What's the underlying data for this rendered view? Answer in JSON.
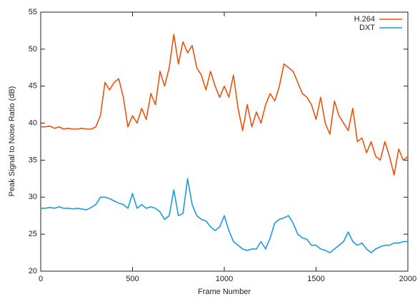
{
  "chart_data": {
    "type": "line",
    "xlabel": "Frame Number",
    "ylabel": "Peak Signal to Noise Ratio (dB)",
    "x": [
      0,
      25,
      50,
      75,
      100,
      125,
      150,
      175,
      200,
      225,
      250,
      275,
      300,
      325,
      350,
      375,
      400,
      425,
      450,
      475,
      500,
      525,
      550,
      575,
      600,
      625,
      650,
      675,
      700,
      725,
      750,
      775,
      800,
      825,
      850,
      875,
      900,
      925,
      950,
      975,
      1000,
      1025,
      1050,
      1075,
      1100,
      1125,
      1150,
      1175,
      1200,
      1225,
      1250,
      1275,
      1300,
      1325,
      1350,
      1375,
      1400,
      1425,
      1450,
      1475,
      1500,
      1525,
      1550,
      1575,
      1600,
      1625,
      1650,
      1675,
      1700,
      1725,
      1750,
      1775,
      1800,
      1825,
      1850,
      1875,
      1900,
      1925,
      1950,
      1975,
      2000
    ],
    "series": [
      {
        "name": "H.264",
        "color": "#e8540c",
        "values": [
          39.5,
          39.5,
          39.6,
          39.3,
          39.5,
          39.2,
          39.3,
          39.2,
          39.2,
          39.3,
          39.2,
          39.2,
          39.5,
          41,
          45.5,
          44.5,
          45.5,
          46,
          43.5,
          39.5,
          41,
          40,
          42,
          40.5,
          44,
          42.5,
          47,
          45,
          47.5,
          52,
          48,
          51,
          49.5,
          50.5,
          47.5,
          46.5,
          44.5,
          47,
          45,
          43.5,
          45,
          43.5,
          46.5,
          42,
          39,
          42.5,
          39.5,
          41.5,
          40,
          42.5,
          44,
          43,
          45,
          48,
          47.5,
          47,
          45.5,
          44,
          43.5,
          42.5,
          40.5,
          43.5,
          40,
          38.5,
          43,
          41,
          40,
          39,
          42,
          37.5,
          38,
          36,
          37.5,
          35.5,
          35,
          37.5,
          35.5,
          33,
          36.5,
          35,
          35.5
        ]
      },
      {
        "name": "DXT",
        "color": "#1a9be0",
        "values": [
          28.5,
          28.5,
          28.6,
          28.5,
          28.7,
          28.5,
          28.5,
          28.4,
          28.5,
          28.4,
          28.3,
          28.6,
          29,
          30,
          30,
          29.8,
          29.5,
          29.2,
          29,
          28.5,
          30.5,
          28.5,
          29,
          28.5,
          28.7,
          28.5,
          28,
          27,
          27.5,
          31,
          27.5,
          27.8,
          32.5,
          29,
          27.5,
          27,
          26.8,
          26,
          25.5,
          26,
          27.5,
          25.5,
          24,
          23.5,
          23,
          22.8,
          23,
          23,
          24,
          23,
          24.5,
          26.5,
          27,
          27.2,
          27.5,
          26.5,
          25,
          24.5,
          24.3,
          23.5,
          23.5,
          23,
          22.8,
          22.5,
          23,
          23.5,
          24,
          25.3,
          24,
          23.5,
          23.8,
          23,
          22.5,
          23,
          23.3,
          23.5,
          23.5,
          23.8,
          23.8,
          24,
          24
        ]
      }
    ],
    "xlim": [
      0,
      2000
    ],
    "xticks": [
      0,
      500,
      1000,
      1500,
      2000
    ],
    "ylim": [
      20,
      55
    ],
    "yticks": [
      20,
      25,
      30,
      35,
      40,
      45,
      50,
      55
    ],
    "grid": false,
    "legend": "top-right"
  }
}
